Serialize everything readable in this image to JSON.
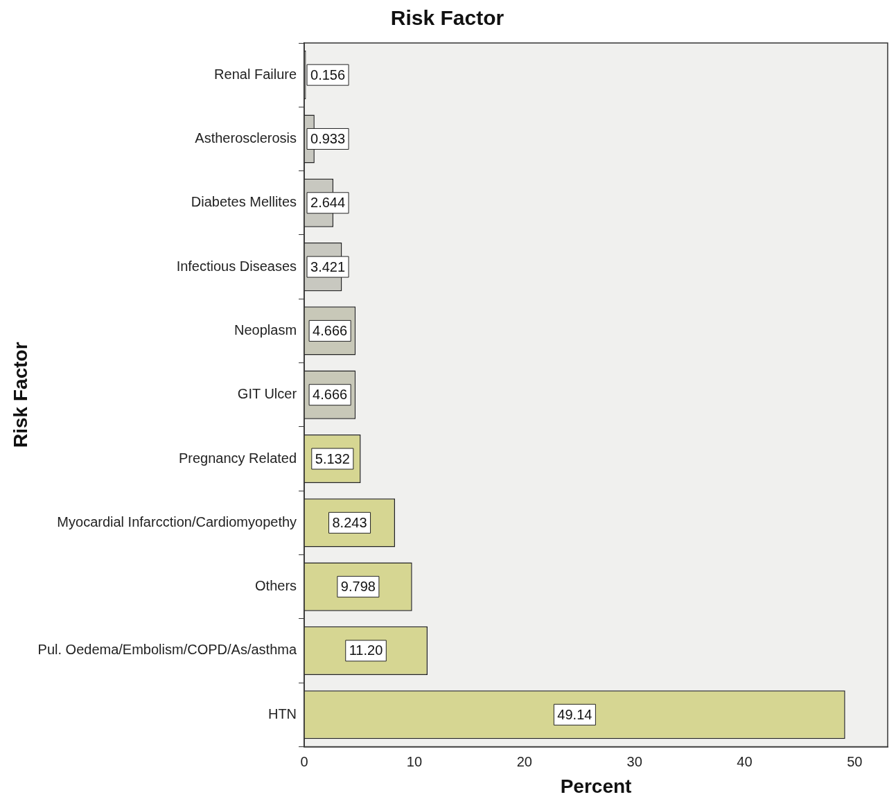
{
  "chart_data": {
    "type": "bar",
    "orientation": "horizontal",
    "title": "Risk Factor",
    "xlabel": "Percent",
    "ylabel": "Risk Factor",
    "categories": [
      "Renal Failure",
      "Astherosclerosis",
      "Diabetes Mellites",
      "Infectious Diseases",
      "Neoplasm",
      "GIT Ulcer",
      "Pregnancy Related",
      "Myocardial Infarcction/Cardiomyopethy",
      "Others",
      "Pul. Oedema/Embolism/COPD/As/asthma",
      "HTN"
    ],
    "values": [
      0.156,
      0.933,
      2.644,
      3.421,
      4.666,
      4.666,
      5.132,
      8.243,
      9.798,
      11.2,
      49.14
    ],
    "value_labels": [
      "0.156",
      "0.933",
      "2.644",
      "3.421",
      "4.666",
      "4.666",
      "5.132",
      "8.243",
      "9.798",
      "11.20",
      "49.14"
    ],
    "colors": [
      "#c8c8c0",
      "#c8c8c0",
      "#c8c8c0",
      "#c8c8c0",
      "#c8c8b8",
      "#c8c8b8",
      "#d6d692",
      "#d6d692",
      "#d6d692",
      "#d6d692",
      "#d6d692"
    ],
    "xlim": [
      0,
      53
    ],
    "xticks": [
      0,
      10,
      20,
      30,
      40,
      50
    ],
    "grid": false,
    "legend": false
  }
}
